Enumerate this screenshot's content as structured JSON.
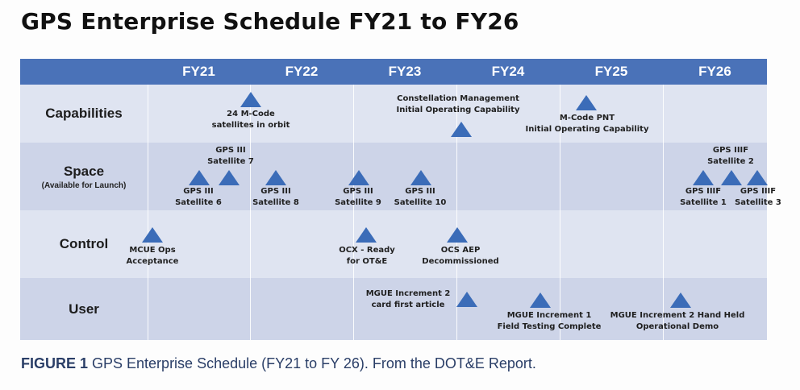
{
  "title": "GPS Enterprise Schedule FY21 to FY26",
  "header": {
    "fiscal_years": [
      "FY21",
      "FY22",
      "FY23",
      "FY24",
      "FY25",
      "FY26"
    ]
  },
  "rows": [
    {
      "name": "Capabilities",
      "sub": ""
    },
    {
      "name": "Space",
      "sub": "(Available for Launch)"
    },
    {
      "name": "Control",
      "sub": ""
    },
    {
      "name": "User",
      "sub": ""
    }
  ],
  "milestones": [
    {
      "lines": [
        "24 M-Code",
        "satellites in orbit"
      ]
    },
    {
      "lines": [
        "Constellation Management",
        "Initial Operating Capability"
      ]
    },
    {
      "lines": [
        "M-Code PNT",
        "Initial Operating Capability"
      ]
    },
    {
      "lines": [
        "GPS III",
        "Satellite 6"
      ]
    },
    {
      "lines": [
        "GPS III",
        "Satellite 7"
      ]
    },
    {
      "lines": [
        "GPS III",
        "Satellite 8"
      ]
    },
    {
      "lines": [
        "GPS III",
        "Satellite 9"
      ]
    },
    {
      "lines": [
        "GPS III",
        "Satellite 10"
      ]
    },
    {
      "lines": [
        "GPS IIIF",
        "Satellite 1"
      ]
    },
    {
      "lines": [
        "GPS IIIF",
        "Satellite 2"
      ]
    },
    {
      "lines": [
        "GPS IIIF",
        "Satellite 3"
      ]
    },
    {
      "lines": [
        "MCUE Ops",
        "Acceptance"
      ]
    },
    {
      "lines": [
        "OCX - Ready",
        "for OT&E"
      ]
    },
    {
      "lines": [
        "OCS AEP",
        "Decommissioned"
      ]
    },
    {
      "lines": [
        "MGUE Increment 2",
        "card first article"
      ]
    },
    {
      "lines": [
        "MGUE Increment 1",
        "Field Testing Complete"
      ]
    },
    {
      "lines": [
        "MGUE Increment 2 Hand Held",
        "Operational Demo"
      ]
    }
  ],
  "caption": {
    "label": "FIGURE 1",
    "text": " GPS Enterprise Schedule (FY21 to FY 26). From the DOT&E Report."
  },
  "colors": {
    "header": "#4a72b8",
    "row_light": "#dfe4f1",
    "row_dark": "#cdd4e8",
    "marker": "#3b6cb8"
  }
}
